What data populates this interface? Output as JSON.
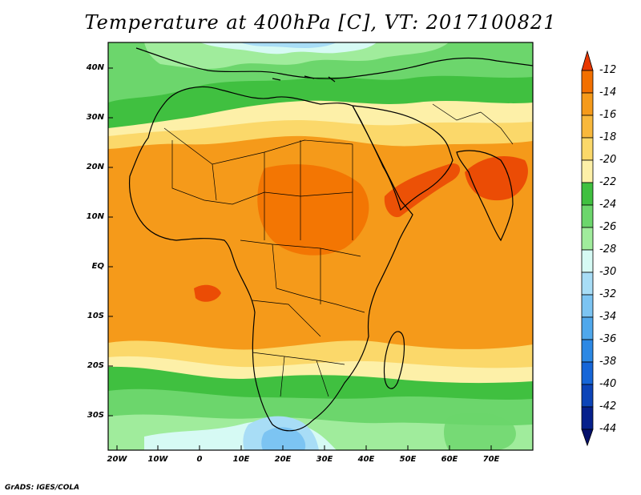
{
  "title": "Temperature at 400hPa [C], VT: 2017100821",
  "footer": "GrADS: IGES/COLA",
  "lat_labels": [
    "40N",
    "30N",
    "20N",
    "10N",
    "EQ",
    "10S",
    "20S",
    "30S"
  ],
  "lon_labels": [
    "20W",
    "10W",
    "0",
    "10E",
    "20E",
    "30E",
    "40E",
    "50E",
    "60E",
    "70E"
  ],
  "colorbar": {
    "labels": [
      "-12",
      "-14",
      "-16",
      "-18",
      "-20",
      "-22",
      "-24",
      "-26",
      "-28",
      "-30",
      "-32",
      "-34",
      "-36",
      "-38",
      "-40",
      "-42",
      "-44"
    ],
    "colors": [
      "#e83800",
      "#f27000",
      "#f59a1a",
      "#f8b83c",
      "#fbd86a",
      "#fdf0a8",
      "#40c040",
      "#6cd66c",
      "#a0ec9c",
      "#d6faf4",
      "#a8ddf6",
      "#7cc4f2",
      "#50a8ec",
      "#2c88e4",
      "#1666d8",
      "#0c44b8",
      "#06208c",
      "#04106a"
    ]
  }
}
